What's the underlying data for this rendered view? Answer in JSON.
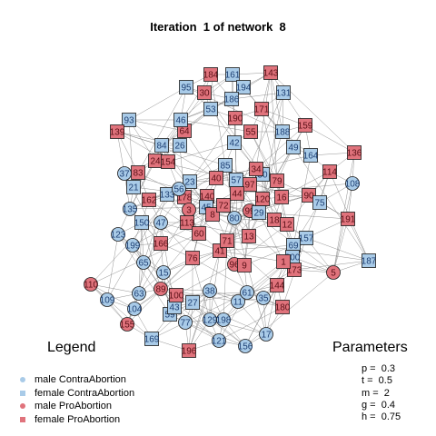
{
  "title": "Iteration  1 of network  8",
  "legend": {
    "title": "Legend",
    "items": [
      {
        "label": "male ContraAbortion",
        "shape": "circle",
        "color": "#a9cbe8"
      },
      {
        "label": "female ContraAbortion",
        "shape": "square",
        "color": "#a9cbe8"
      },
      {
        "label": "male ProAbortion",
        "shape": "circle",
        "color": "#e0737c"
      },
      {
        "label": "female ProAbortion",
        "shape": "square",
        "color": "#e0737c"
      }
    ]
  },
  "parameters": {
    "title": "Parameters",
    "items": [
      "p =  0.3",
      "t =  0.5",
      "m =  2",
      "g =  0.4",
      "h =  0.75"
    ]
  },
  "colors": {
    "contra": "#a9cbe8",
    "pro": "#e0737c",
    "edge": "#7f7f7f",
    "node_border": "#1a1a1a"
  },
  "network": {
    "nodes": [
      {
        "id": "184",
        "group": "pro",
        "shape": "square"
      },
      {
        "id": "161",
        "group": "contra",
        "shape": "square"
      },
      {
        "id": "143",
        "group": "pro",
        "shape": "square"
      },
      {
        "id": "95",
        "group": "contra",
        "shape": "square"
      },
      {
        "id": "194",
        "group": "contra",
        "shape": "square"
      },
      {
        "id": "131",
        "group": "contra",
        "shape": "square"
      },
      {
        "id": "186",
        "group": "contra",
        "shape": "square"
      },
      {
        "id": "159",
        "group": "pro",
        "shape": "square"
      },
      {
        "id": "93",
        "group": "contra",
        "shape": "square"
      },
      {
        "id": "139",
        "group": "pro",
        "shape": "square"
      },
      {
        "id": "64",
        "group": "pro",
        "shape": "square"
      },
      {
        "id": "46",
        "group": "contra",
        "shape": "square"
      },
      {
        "id": "190",
        "group": "pro",
        "shape": "square"
      },
      {
        "id": "171",
        "group": "pro",
        "shape": "square"
      },
      {
        "id": "188",
        "group": "contra",
        "shape": "square"
      },
      {
        "id": "42",
        "group": "contra",
        "shape": "square"
      },
      {
        "id": "84",
        "group": "contra",
        "shape": "square"
      },
      {
        "id": "164",
        "group": "contra",
        "shape": "square"
      },
      {
        "id": "136",
        "group": "pro",
        "shape": "square"
      },
      {
        "id": "24",
        "group": "pro",
        "shape": "square"
      },
      {
        "id": "154",
        "group": "pro",
        "shape": "square"
      },
      {
        "id": "85",
        "group": "contra",
        "shape": "square"
      },
      {
        "id": "114",
        "group": "pro",
        "shape": "square"
      },
      {
        "id": "37",
        "group": "contra",
        "shape": "circle"
      },
      {
        "id": "83",
        "group": "pro",
        "shape": "square"
      },
      {
        "id": "21",
        "group": "contra",
        "shape": "square"
      },
      {
        "id": "108",
        "group": "contra",
        "shape": "circle"
      },
      {
        "id": "23",
        "group": "contra",
        "shape": "square"
      },
      {
        "id": "162",
        "group": "pro",
        "shape": "square"
      },
      {
        "id": "178",
        "group": "pro",
        "shape": "square"
      },
      {
        "id": "140",
        "group": "pro",
        "shape": "square"
      },
      {
        "id": "50",
        "group": "contra",
        "shape": "square"
      },
      {
        "id": "90",
        "group": "pro",
        "shape": "square"
      },
      {
        "id": "75",
        "group": "contra",
        "shape": "square"
      },
      {
        "id": "191",
        "group": "pro",
        "shape": "square"
      },
      {
        "id": "135",
        "group": "contra",
        "shape": "circle"
      },
      {
        "id": "150",
        "group": "contra",
        "shape": "square"
      },
      {
        "id": "3",
        "group": "pro",
        "shape": "circle"
      },
      {
        "id": "113",
        "group": "pro",
        "shape": "square"
      },
      {
        "id": "99",
        "group": "pro",
        "shape": "circle"
      },
      {
        "id": "29",
        "group": "contra",
        "shape": "square"
      },
      {
        "id": "123",
        "group": "contra",
        "shape": "circle"
      },
      {
        "id": "199",
        "group": "contra",
        "shape": "circle"
      },
      {
        "id": "166",
        "group": "pro",
        "shape": "square"
      },
      {
        "id": "60",
        "group": "pro",
        "shape": "square"
      },
      {
        "id": "41",
        "group": "pro",
        "shape": "square"
      },
      {
        "id": "157",
        "group": "contra",
        "shape": "square"
      },
      {
        "id": "69",
        "group": "contra",
        "shape": "square"
      },
      {
        "id": "187",
        "group": "contra",
        "shape": "square"
      },
      {
        "id": "200",
        "group": "contra",
        "shape": "square"
      },
      {
        "id": "110",
        "group": "pro",
        "shape": "circle"
      },
      {
        "id": "96",
        "group": "pro",
        "shape": "circle"
      },
      {
        "id": "173",
        "group": "pro",
        "shape": "square"
      },
      {
        "id": "5",
        "group": "pro",
        "shape": "circle"
      },
      {
        "id": "144",
        "group": "pro",
        "shape": "square"
      },
      {
        "id": "109",
        "group": "contra",
        "shape": "circle"
      },
      {
        "id": "27",
        "group": "contra",
        "shape": "square"
      },
      {
        "id": "180",
        "group": "pro",
        "shape": "square"
      },
      {
        "id": "155",
        "group": "pro",
        "shape": "circle"
      },
      {
        "id": "129",
        "group": "contra",
        "shape": "circle"
      },
      {
        "id": "198",
        "group": "contra",
        "shape": "circle"
      },
      {
        "id": "156",
        "group": "contra",
        "shape": "circle"
      },
      {
        "id": "17",
        "group": "contra",
        "shape": "circle"
      },
      {
        "id": "121",
        "group": "contra",
        "shape": "circle"
      },
      {
        "id": "169",
        "group": "contra",
        "shape": "square"
      },
      {
        "id": "196",
        "group": "pro",
        "shape": "square"
      },
      {
        "id": "13",
        "group": "pro",
        "shape": "square"
      },
      {
        "id": "11",
        "group": "contra",
        "shape": "circle"
      },
      {
        "id": "104",
        "group": "contra",
        "shape": "circle"
      },
      {
        "id": "63",
        "group": "contra",
        "shape": "circle"
      },
      {
        "id": "59",
        "group": "contra",
        "shape": "square"
      },
      {
        "id": "76",
        "group": "pro",
        "shape": "square"
      },
      {
        "id": "15",
        "group": "contra",
        "shape": "circle"
      },
      {
        "id": "61",
        "group": "contra",
        "shape": "circle"
      },
      {
        "id": "35",
        "group": "contra",
        "shape": "circle"
      },
      {
        "id": "65",
        "group": "contra",
        "shape": "circle"
      },
      {
        "id": "43",
        "group": "contra",
        "shape": "square"
      },
      {
        "id": "100",
        "group": "pro",
        "shape": "square"
      },
      {
        "id": "89",
        "group": "pro",
        "shape": "circle"
      },
      {
        "id": "80",
        "group": "contra",
        "shape": "circle"
      },
      {
        "id": "38",
        "group": "contra",
        "shape": "circle"
      },
      {
        "id": "77",
        "group": "contra",
        "shape": "circle"
      },
      {
        "id": "97",
        "group": "pro",
        "shape": "square"
      },
      {
        "id": "79",
        "group": "pro",
        "shape": "square"
      },
      {
        "id": "120",
        "group": "pro",
        "shape": "square"
      },
      {
        "id": "133",
        "group": "contra",
        "shape": "square"
      },
      {
        "id": "53",
        "group": "contra",
        "shape": "square"
      },
      {
        "id": "45",
        "group": "contra",
        "shape": "square"
      },
      {
        "id": "56",
        "group": "contra",
        "shape": "circle"
      },
      {
        "id": "47",
        "group": "contra",
        "shape": "circle"
      },
      {
        "id": "71",
        "group": "pro",
        "shape": "square"
      },
      {
        "id": "18",
        "group": "pro",
        "shape": "square"
      },
      {
        "id": "8",
        "group": "pro",
        "shape": "square"
      },
      {
        "id": "12",
        "group": "pro",
        "shape": "square"
      },
      {
        "id": "44",
        "group": "pro",
        "shape": "square"
      },
      {
        "id": "16",
        "group": "pro",
        "shape": "square"
      },
      {
        "id": "1",
        "group": "pro",
        "shape": "square"
      },
      {
        "id": "9",
        "group": "pro",
        "shape": "square"
      },
      {
        "id": "26",
        "group": "contra",
        "shape": "square"
      },
      {
        "id": "72",
        "group": "pro",
        "shape": "square"
      },
      {
        "id": "57",
        "group": "contra",
        "shape": "square"
      },
      {
        "id": "40",
        "group": "pro",
        "shape": "square"
      },
      {
        "id": "49",
        "group": "contra",
        "shape": "square"
      },
      {
        "id": "55",
        "group": "pro",
        "shape": "square"
      },
      {
        "id": "30",
        "group": "pro",
        "shape": "square"
      },
      {
        "id": "34",
        "group": "pro",
        "shape": "square"
      }
    ]
  }
}
